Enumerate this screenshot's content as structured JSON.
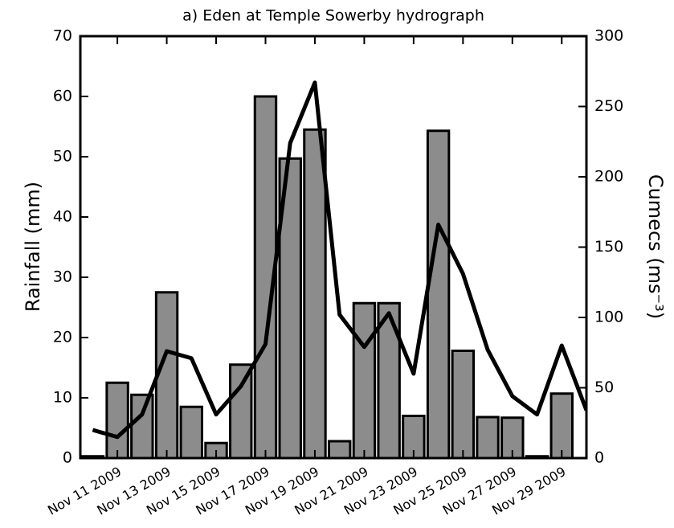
{
  "chart_data": {
    "type": "bar+line",
    "title": "a) Eden at Temple Sowerby hydrograph",
    "ylabel": "Rainfall (mm)",
    "y2label": "Cumecs (ms⁻³)",
    "x": [
      "2009-11-10",
      "2009-11-11",
      "2009-11-12",
      "2009-11-13",
      "2009-11-14",
      "2009-11-15",
      "2009-11-16",
      "2009-11-17",
      "2009-11-18",
      "2009-11-19",
      "2009-11-20",
      "2009-11-21",
      "2009-11-22",
      "2009-11-23",
      "2009-11-24",
      "2009-11-25",
      "2009-11-26",
      "2009-11-27",
      "2009-11-28",
      "2009-11-29",
      "2009-11-30"
    ],
    "series": [
      {
        "type": "bar",
        "color": "#8c8c8c",
        "values": [
          0.3,
          12.5,
          10.5,
          27.5,
          8.5,
          2.5,
          15.5,
          60,
          49.7,
          54.5,
          2.8,
          25.7,
          25.7,
          7,
          54.3,
          17.8,
          6.8,
          6.7,
          0.3,
          10.7,
          null
        ]
      },
      {
        "type": "line",
        "axis": "y2",
        "color": "#000000",
        "values": [
          20,
          15,
          31,
          76,
          71,
          31,
          51,
          81,
          224,
          267,
          102,
          79,
          103,
          60,
          166,
          131,
          77,
          44,
          31,
          80,
          34
        ]
      }
    ],
    "xlim": [
      "2009-11-09T12:00Z",
      "2009-11-30T00:00Z"
    ],
    "xticks": [
      {
        "value": "2009-11-11",
        "label": "Nov 11 2009"
      },
      {
        "value": "2009-11-13",
        "label": "Nov 13 2009"
      },
      {
        "value": "2009-11-15",
        "label": "Nov 15 2009"
      },
      {
        "value": "2009-11-17",
        "label": "Nov 17 2009"
      },
      {
        "value": "2009-11-19",
        "label": "Nov 19 2009"
      },
      {
        "value": "2009-11-21",
        "label": "Nov 21 2009"
      },
      {
        "value": "2009-11-23",
        "label": "Nov 23 2009"
      },
      {
        "value": "2009-11-25",
        "label": "Nov 25 2009"
      },
      {
        "value": "2009-11-27",
        "label": "Nov 27 2009"
      },
      {
        "value": "2009-11-29",
        "label": "Nov 29 2009"
      }
    ],
    "ylim": [
      0,
      70
    ],
    "yticks": [
      0,
      10,
      20,
      30,
      40,
      50,
      60,
      70
    ],
    "y2lim": [
      0,
      300
    ],
    "y2ticks": [
      0,
      50,
      100,
      150,
      200,
      250,
      300
    ]
  }
}
